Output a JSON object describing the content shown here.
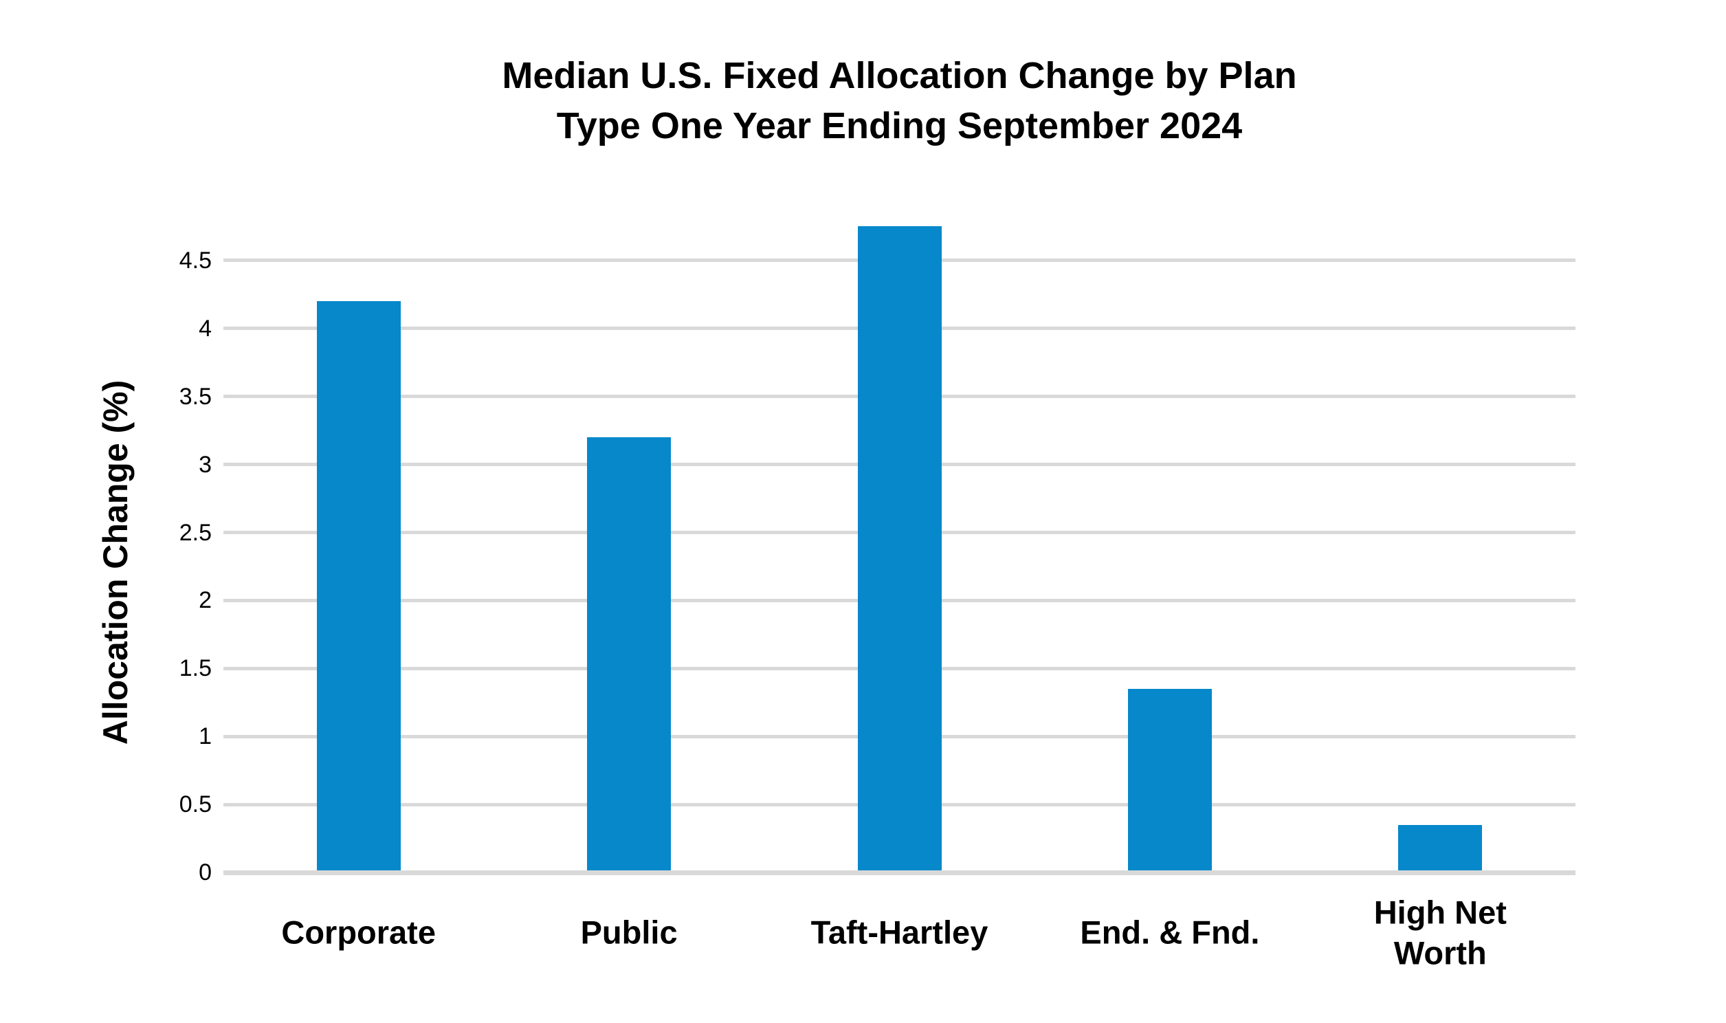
{
  "chart_data": {
    "type": "bar",
    "title": "Median U.S. Fixed Allocation Change by Plan Type One Year Ending September 2024",
    "title_lines": [
      "Median U.S. Fixed Allocation Change by Plan",
      "Type One Year Ending September 2024"
    ],
    "categories": [
      "Corporate",
      "Public",
      "Taft-Hartley",
      "End. & Fnd.",
      "High Net Worth"
    ],
    "category_label_lines": [
      [
        "Corporate"
      ],
      [
        "Public"
      ],
      [
        "Taft-Hartley"
      ],
      [
        "End. & Fnd."
      ],
      [
        "High Net",
        "Worth"
      ]
    ],
    "values": [
      4.2,
      3.2,
      4.75,
      1.35,
      0.35
    ],
    "xlabel": "",
    "ylabel": "Allocation Change (%)",
    "yticks": [
      0,
      0.5,
      1,
      1.5,
      2,
      2.5,
      3,
      3.5,
      4,
      4.5
    ],
    "ytick_labels": [
      "0",
      "0.5",
      "1",
      "1.5",
      "2",
      "2.5",
      "3",
      "3.5",
      "4",
      "4.5"
    ],
    "ylim": [
      0,
      4.9
    ],
    "grid": true,
    "legend": false,
    "bar_color": "#0688CB",
    "gridline_color": "#D9D9D9",
    "text_color": "#000000",
    "background_color": "#FFFFFF"
  }
}
